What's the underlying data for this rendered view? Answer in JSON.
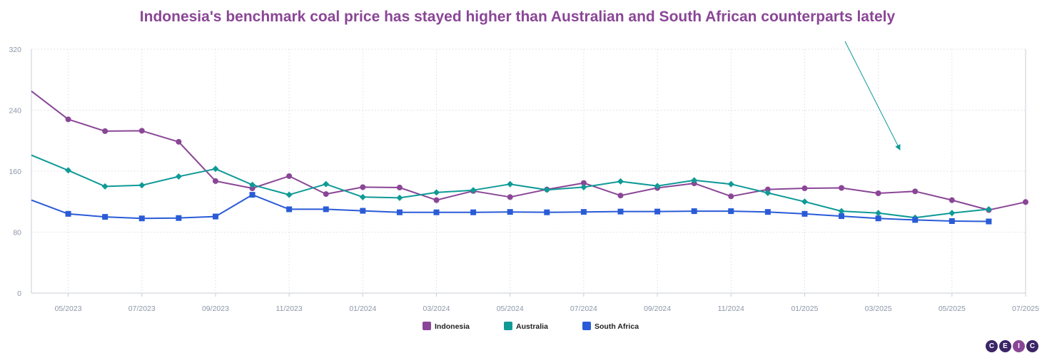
{
  "chart_data": {
    "type": "line",
    "title": "Indonesia's benchmark coal price has stayed higher than Australian and South African counterparts lately",
    "xlabel": "",
    "ylabel": "",
    "ylim": [
      0,
      320
    ],
    "yticks": [
      0,
      80,
      160,
      240,
      320
    ],
    "x": [
      "04/2023",
      "05/2023",
      "06/2023",
      "07/2023",
      "08/2023",
      "09/2023",
      "10/2023",
      "11/2023",
      "12/2023",
      "01/2024",
      "02/2024",
      "03/2024",
      "04/2024",
      "05/2024",
      "06/2024",
      "07/2024",
      "08/2024",
      "09/2024",
      "10/2024",
      "11/2024",
      "12/2024",
      "01/2025",
      "02/2025",
      "03/2025",
      "04/2025",
      "05/2025",
      "06/2025",
      "07/2025"
    ],
    "xtick_labels": [
      "05/2023",
      "07/2023",
      "09/2023",
      "11/2023",
      "01/2024",
      "03/2024",
      "05/2024",
      "07/2024",
      "09/2024",
      "11/2024",
      "01/2025",
      "03/2025",
      "05/2025",
      "07/2025"
    ],
    "grid": true,
    "legend_position": "bottom",
    "series": [
      {
        "name": "Indonesia",
        "color": "#8a4696",
        "marker": "circle",
        "values": [
          265.0,
          228.0,
          212.5,
          213.0,
          198.5,
          147.0,
          137.5,
          153.5,
          130.0,
          139.0,
          138.5,
          122.0,
          134.0,
          126.0,
          136.0,
          144.5,
          128.0,
          138.0,
          144.0,
          127.0,
          136.0,
          137.5,
          138.0,
          131.0,
          133.5,
          122.0,
          109.0,
          119.5
        ]
      },
      {
        "name": "Australia",
        "color": "#0f9a96",
        "marker": "diamond",
        "values": [
          181.0,
          161.0,
          140.0,
          141.5,
          153.0,
          163.0,
          142.0,
          129.0,
          143.0,
          126.0,
          125.0,
          132.0,
          135.0,
          143.0,
          135.5,
          139.0,
          146.5,
          140.5,
          148.0,
          143.0,
          131.5,
          120.0,
          107.5,
          105.0,
          99.0,
          105.0,
          110.0,
          null
        ]
      },
      {
        "name": "South Africa",
        "color": "#2a5bd7",
        "marker": "square",
        "values": [
          122.0,
          104.0,
          100.0,
          98.0,
          98.5,
          100.5,
          129.0,
          110.0,
          110.0,
          108.0,
          106.0,
          106.0,
          106.0,
          106.5,
          106.0,
          106.5,
          107.0,
          107.0,
          107.5,
          107.5,
          106.5,
          104.0,
          101.0,
          98.0,
          96.0,
          94.5,
          94.0,
          null
        ]
      }
    ],
    "annotations": [
      {
        "type": "arrow",
        "color": "#0f9a96"
      }
    ]
  },
  "logo": {
    "letters": [
      "C",
      "E",
      "I",
      "C"
    ]
  }
}
